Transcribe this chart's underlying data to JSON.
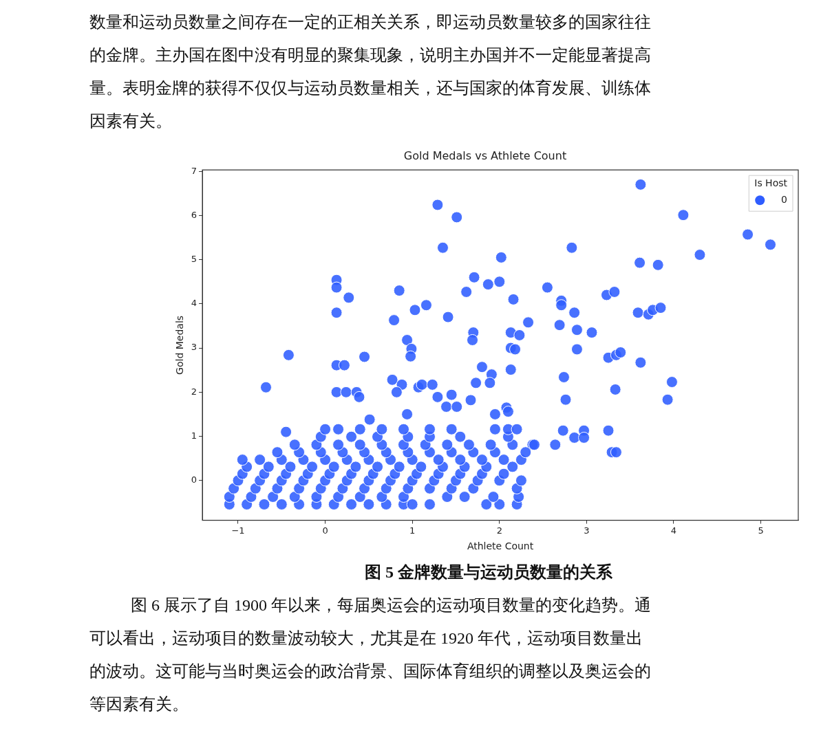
{
  "chart_data": {
    "type": "scatter",
    "title": "Gold Medals vs Athlete Count",
    "xlabel": "Athlete Count",
    "ylabel": "Gold Medals",
    "legend_title": "Is Host",
    "legend": "top right",
    "marker": "circle",
    "grid": false,
    "xlim": [
      -1.41,
      5.43
    ],
    "xticks": [
      {
        "value": -1,
        "label": "−1"
      },
      0,
      1,
      2,
      3,
      4,
      5
    ],
    "ylim": [
      -0.9,
      7.03
    ],
    "yticks": [
      0,
      1,
      2,
      3,
      4,
      5,
      6,
      7
    ],
    "annotations": [
      "数量和运动员数量之间存在一定的正相关关系，即运动员数量较多的国家往往",
      "的金牌。主办国在图中没有明显的聚集现象，说明主办国并不一定能显著提高",
      "量。表明金牌的获得不仅仅与运动员数量相关，还与国家的体育发展、训练体",
      "因素有关。",
      "图 5 金牌数量与运动员数量的关系",
      "图 6 展示了自 1900 年以来，每届奥运会的运动项目数量的变化趋势。通",
      "可以看出，运动项目的数量波动较大，尤其是在 1920 年代，运动项目数量出",
      "的波动。这可能与当时奥运会的政治背景、国际体育组织的调整以及奥运会的",
      "等因素有关。"
    ],
    "series": [
      {
        "name": "0",
        "color": "#2f5dff",
        "x": [
          1.29,
          1.51,
          1.35,
          3.62,
          4.11,
          4.85,
          5.11,
          4.3,
          2.83,
          3.61,
          3.82,
          2.02,
          0.13,
          0.13,
          0.27,
          0.13,
          0.85,
          1.03,
          1.16,
          1.41,
          0.79,
          1.71,
          1.62,
          1.87,
          2.0,
          2.16,
          2.55,
          2.71,
          2.71,
          2.86,
          3.23,
          3.32,
          3.59,
          3.71,
          3.76,
          3.85,
          1.7,
          1.69,
          0.94,
          0.99,
          0.98,
          2.13,
          2.23,
          2.33,
          2.69,
          2.89,
          3.06,
          2.13,
          2.18,
          2.89,
          -0.42,
          0.13,
          0.22,
          0.45,
          3.25,
          3.34,
          3.39,
          3.62,
          1.8,
          1.91,
          1.89,
          1.73,
          2.13,
          2.74,
          -0.68,
          0.13,
          0.24,
          0.36,
          0.39,
          0.77,
          0.88,
          0.82,
          1.07,
          1.11,
          1.23,
          1.29,
          1.45,
          1.67,
          3.33,
          3.98,
          3.93,
          2.76,
          0.51,
          -0.45,
          0.94,
          1.95,
          2.08,
          2.1,
          1.39,
          1.51,
          3.25,
          2.97,
          2.86,
          2.97,
          2.64,
          3.29,
          3.34,
          2.73,
          2.38,
          -1.1,
          -0.9,
          -0.7,
          -0.5,
          -0.3,
          -0.1,
          0.1,
          0.3,
          0.5,
          0.7,
          0.9,
          1.0,
          1.2,
          1.85,
          2.0,
          2.2,
          -1.1,
          -0.85,
          -0.6,
          -0.35,
          -0.1,
          0.15,
          0.4,
          0.65,
          0.9,
          1.4,
          1.6,
          1.93,
          2.22,
          -1.05,
          -0.8,
          -0.55,
          -0.3,
          -0.05,
          0.2,
          0.45,
          0.7,
          0.95,
          1.2,
          1.45,
          1.7,
          2.2,
          -1.0,
          -0.75,
          -0.5,
          -0.25,
          0,
          0.25,
          0.5,
          0.75,
          1.0,
          1.25,
          1.5,
          1.75,
          2.0,
          2.25,
          -0.95,
          -0.7,
          -0.45,
          -0.2,
          0.05,
          0.3,
          0.55,
          0.8,
          1.05,
          1.3,
          1.55,
          1.8,
          2.05,
          -0.9,
          -0.65,
          -0.4,
          -0.15,
          0.1,
          0.35,
          0.6,
          0.85,
          1.1,
          1.35,
          1.6,
          1.85,
          2.15,
          -0.95,
          -0.75,
          -0.5,
          -0.25,
          0,
          0.25,
          0.5,
          0.75,
          1.0,
          1.3,
          1.55,
          1.8,
          2.05,
          2.25,
          -0.55,
          -0.3,
          -0.05,
          0.2,
          0.45,
          0.7,
          0.95,
          1.2,
          1.45,
          1.7,
          1.95,
          2.3,
          -0.35,
          -0.1,
          0.15,
          0.4,
          0.65,
          0.9,
          1.15,
          1.4,
          1.65,
          1.9,
          2.15,
          2.4,
          -0.05,
          0.3,
          0.6,
          0.95,
          1.2,
          1.55,
          2.1,
          0.0,
          0.15,
          0.4,
          0.65,
          0.9,
          1.2,
          1.45,
          1.95,
          2.1,
          2.2
        ],
        "values": [
          6.24,
          5.96,
          5.27,
          6.7,
          6.01,
          5.57,
          5.34,
          5.11,
          5.27,
          4.93,
          4.88,
          5.05,
          4.54,
          4.37,
          4.14,
          3.8,
          4.3,
          3.86,
          3.97,
          3.7,
          3.63,
          4.6,
          4.27,
          4.44,
          4.5,
          4.1,
          4.37,
          4.07,
          3.97,
          3.8,
          4.2,
          4.27,
          3.8,
          3.76,
          3.86,
          3.91,
          3.35,
          3.18,
          3.18,
          2.98,
          2.81,
          3.35,
          3.29,
          3.58,
          3.52,
          3.41,
          3.35,
          3.0,
          2.97,
          2.97,
          2.84,
          2.61,
          2.61,
          2.8,
          2.78,
          2.84,
          2.9,
          2.67,
          2.57,
          2.4,
          2.21,
          2.21,
          2.51,
          2.34,
          2.11,
          2.0,
          2.0,
          2.0,
          1.89,
          2.28,
          2.17,
          2.0,
          2.11,
          2.17,
          2.17,
          1.89,
          1.94,
          1.82,
          2.06,
          2.23,
          1.83,
          1.83,
          1.38,
          1.1,
          1.5,
          1.5,
          1.65,
          1.56,
          1.67,
          1.67,
          1.13,
          1.13,
          0.97,
          0.97,
          0.81,
          0.64,
          0.64,
          1.13,
          0.81,
          -0.54,
          -0.54,
          -0.54,
          -0.54,
          -0.54,
          -0.54,
          -0.54,
          -0.54,
          -0.54,
          -0.54,
          -0.54,
          -0.54,
          -0.54,
          -0.54,
          -0.54,
          -0.54,
          -0.37,
          -0.37,
          -0.37,
          -0.37,
          -0.37,
          -0.37,
          -0.37,
          -0.37,
          -0.37,
          -0.37,
          -0.37,
          -0.37,
          -0.37,
          -0.18,
          -0.18,
          -0.18,
          -0.18,
          -0.18,
          -0.18,
          -0.18,
          -0.18,
          -0.18,
          -0.18,
          -0.18,
          -0.18,
          -0.18,
          0,
          0,
          0,
          0,
          0,
          0,
          0,
          0,
          0,
          0,
          0,
          0,
          0,
          0,
          0.15,
          0.15,
          0.15,
          0.15,
          0.15,
          0.15,
          0.15,
          0.15,
          0.15,
          0.15,
          0.15,
          0.15,
          0.15,
          0.31,
          0.31,
          0.31,
          0.31,
          0.31,
          0.31,
          0.31,
          0.31,
          0.31,
          0.31,
          0.31,
          0.31,
          0.31,
          0.47,
          0.47,
          0.47,
          0.47,
          0.47,
          0.47,
          0.47,
          0.47,
          0.47,
          0.47,
          0.47,
          0.47,
          0.47,
          0.47,
          0.64,
          0.64,
          0.64,
          0.64,
          0.64,
          0.64,
          0.64,
          0.64,
          0.64,
          0.64,
          0.64,
          0.64,
          0.81,
          0.81,
          0.81,
          0.81,
          0.81,
          0.81,
          0.81,
          0.81,
          0.81,
          0.81,
          0.81,
          0.81,
          0.99,
          0.99,
          0.99,
          0.99,
          0.99,
          0.99,
          0.99,
          1.16,
          1.16,
          1.16,
          1.16,
          1.16,
          1.16,
          1.16,
          1.16,
          1.16,
          1.16
        ]
      }
    ]
  }
}
